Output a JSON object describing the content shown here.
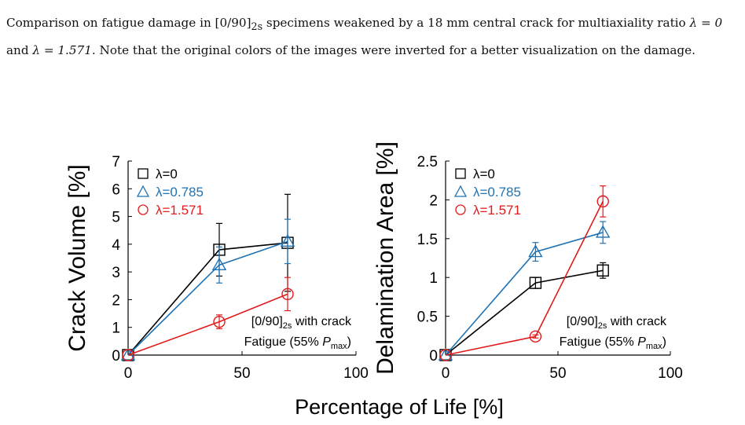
{
  "caption": {
    "part1": "Comparison on fatigue damage in [0/90]",
    "part1_sub": "2s",
    "part2": " specimens weakened by a 18 mm central crack for multiaxiality ratio ",
    "lambda_a": "λ = 0",
    "part3": " and ",
    "lambda_b": "λ = 1.571",
    "part4": ". Note that the original colors of the images were inverted for a better visualization on the damage."
  },
  "shared_xlabel": "Percentage of Life [%]",
  "colors": {
    "lambda0": "#000000",
    "lambda0785": "#1f73b4",
    "lambda1571": "#e31a1c"
  },
  "chart_data": [
    {
      "type": "line",
      "ylabel": "Crack Volume [%]",
      "xlim": [
        0,
        100
      ],
      "ylim": [
        0,
        7
      ],
      "xticks": [
        "0",
        "50",
        "100"
      ],
      "yticks": [
        "0",
        "1",
        "2",
        "3",
        "4",
        "5",
        "6",
        "7"
      ],
      "annotation": {
        "line1": "[0/90]",
        "line1_sub": "2s",
        "line1_rest": " with crack",
        "line2": "Fatigue (55% ",
        "line2_p": "P",
        "line2_sub": "max",
        "line2_end": ")"
      },
      "series": [
        {
          "name": "λ=0",
          "marker": "square",
          "x": [
            0,
            40,
            70
          ],
          "y": [
            0,
            3.8,
            4.05
          ],
          "err": [
            0,
            0.95,
            1.75
          ]
        },
        {
          "name": "λ=0.785",
          "marker": "triangle",
          "x": [
            0,
            40,
            70
          ],
          "y": [
            0,
            3.25,
            4.1
          ],
          "err": [
            0,
            0.65,
            0.8
          ]
        },
        {
          "name": "λ=1.571",
          "marker": "circle",
          "x": [
            0,
            40,
            70
          ],
          "y": [
            0,
            1.2,
            2.2
          ],
          "err": [
            0,
            0.25,
            0.6
          ]
        }
      ]
    },
    {
      "type": "line",
      "ylabel": "Delamination Area [%]",
      "xlim": [
        0,
        100
      ],
      "ylim": [
        0,
        2.5
      ],
      "xticks": [
        "0",
        "50",
        "100"
      ],
      "yticks": [
        "0",
        "0.5",
        "1",
        "1.5",
        "2",
        "2.5"
      ],
      "annotation": {
        "line1": "[0/90]",
        "line1_sub": "2s",
        "line1_rest": " with crack",
        "line2": "Fatigue (55% ",
        "line2_p": "P",
        "line2_sub": "max",
        "line2_end": ")"
      },
      "series": [
        {
          "name": "λ=0",
          "marker": "square",
          "x": [
            0,
            40,
            70
          ],
          "y": [
            0,
            0.93,
            1.09
          ],
          "err": [
            0,
            0.07,
            0.1
          ]
        },
        {
          "name": "λ=0.785",
          "marker": "triangle",
          "x": [
            0,
            40,
            70
          ],
          "y": [
            0,
            1.33,
            1.58
          ],
          "err": [
            0,
            0.12,
            0.14
          ]
        },
        {
          "name": "λ=1.571",
          "marker": "circle",
          "x": [
            0,
            40,
            70
          ],
          "y": [
            0,
            0.24,
            1.98
          ],
          "err": [
            0,
            0.02,
            0.2
          ]
        }
      ]
    }
  ]
}
